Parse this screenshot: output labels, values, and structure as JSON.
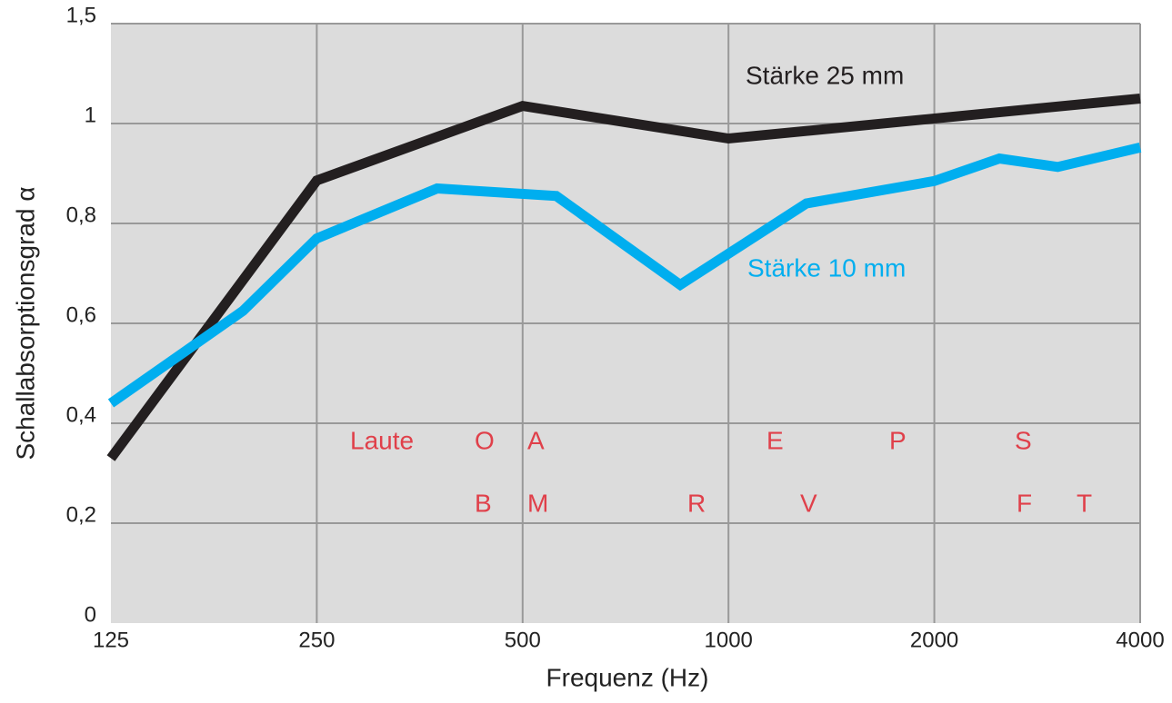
{
  "chart_data": {
    "type": "line",
    "xlabel": "Frequenz (Hz)",
    "ylabel": "Schallabsorptionsgrad α",
    "xscale": "log",
    "xlim": [
      125,
      4000
    ],
    "xticks": [
      125,
      250,
      500,
      1000,
      2000,
      4000
    ],
    "ylim": [
      0,
      1.5
    ],
    "yticks": [
      0,
      {
        "value": 0.2,
        "label": "0,2"
      },
      {
        "value": 0.4,
        "label": "0,4"
      },
      {
        "value": 0.6,
        "label": "0,6"
      },
      {
        "value": 0.8,
        "label": "0,8"
      },
      1,
      {
        "value": 1.5,
        "label": "1,5"
      }
    ],
    "grid": true,
    "series": [
      {
        "name": "Stärke 25 mm",
        "color": "#231f20",
        "x": [
          125,
          250,
          500,
          1000,
          4000
        ],
        "values": [
          0.33,
          0.886,
          1.088,
          0.97,
          1.125
        ]
      },
      {
        "name": "Stärke 10 mm",
        "color": "#00aeef",
        "x": [
          125,
          195,
          250,
          375,
          560,
          850,
          1300,
          2000,
          2490,
          3030,
          4000
        ],
        "values": [
          0.44,
          0.625,
          0.77,
          0.87,
          0.855,
          0.677,
          0.84,
          0.885,
          0.93,
          0.913,
          0.952
        ]
      }
    ],
    "annotations": [
      "Laute",
      "O",
      "A",
      "E",
      "P",
      "S",
      "B",
      "M",
      "R",
      "V",
      "F",
      "T"
    ],
    "annotation_color": "#e0404a"
  }
}
